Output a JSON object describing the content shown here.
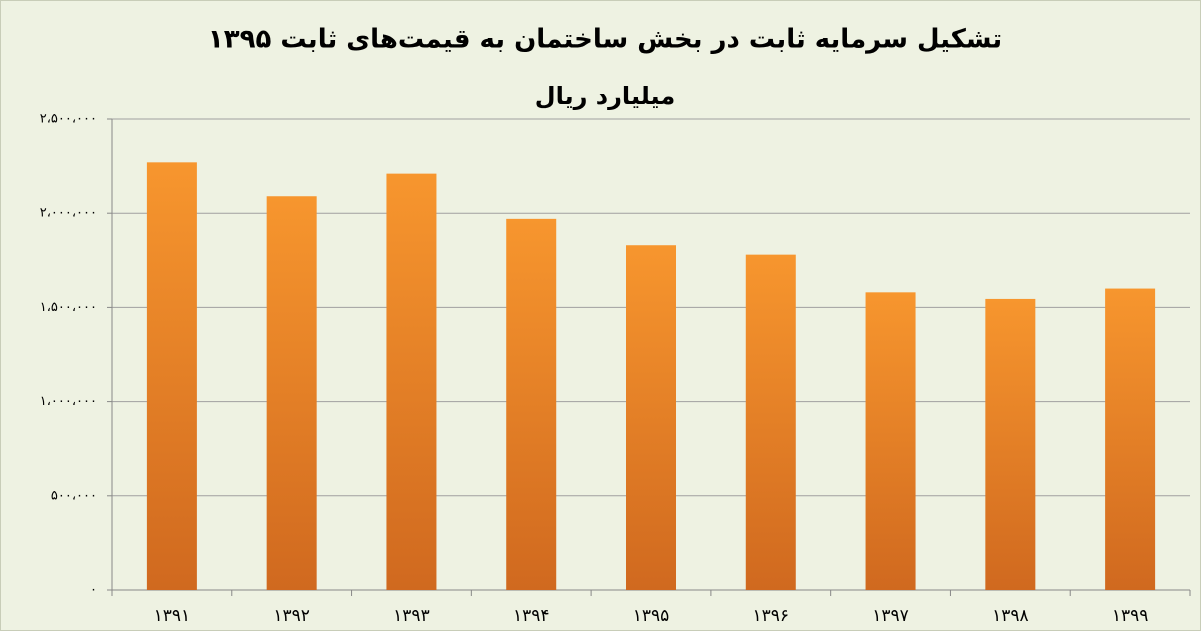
{
  "chart_data": {
    "type": "bar",
    "title": "تشکیل سرمایه ثابت در بخش ساختمان به قیمت‌های ثابت ۱۳۹۵",
    "subtitle": "میلیارد ریال",
    "categories": [
      "۱۳۹۱",
      "۱۳۹۲",
      "۱۳۹۳",
      "۱۳۹۴",
      "۱۳۹۵",
      "۱۳۹۶",
      "۱۳۹۷",
      "۱۳۹۸",
      "۱۳۹۹"
    ],
    "values": [
      2270000,
      2090000,
      2210000,
      1970000,
      1830000,
      1780000,
      1580000,
      1545000,
      1600000
    ],
    "color": "#f7962e",
    "ylim": [
      0,
      2500000
    ],
    "yticks": [
      {
        "value": 0,
        "label": "۰"
      },
      {
        "value": 500000,
        "label": "۵۰۰،۰۰۰"
      },
      {
        "value": 1000000,
        "label": "۱،۰۰۰،۰۰۰"
      },
      {
        "value": 1500000,
        "label": "۱،۵۰۰،۰۰۰"
      },
      {
        "value": 2000000,
        "label": "۲،۰۰۰،۰۰۰"
      },
      {
        "value": 2500000,
        "label": "۲،۵۰۰،۰۰۰"
      }
    ],
    "grid": true
  }
}
